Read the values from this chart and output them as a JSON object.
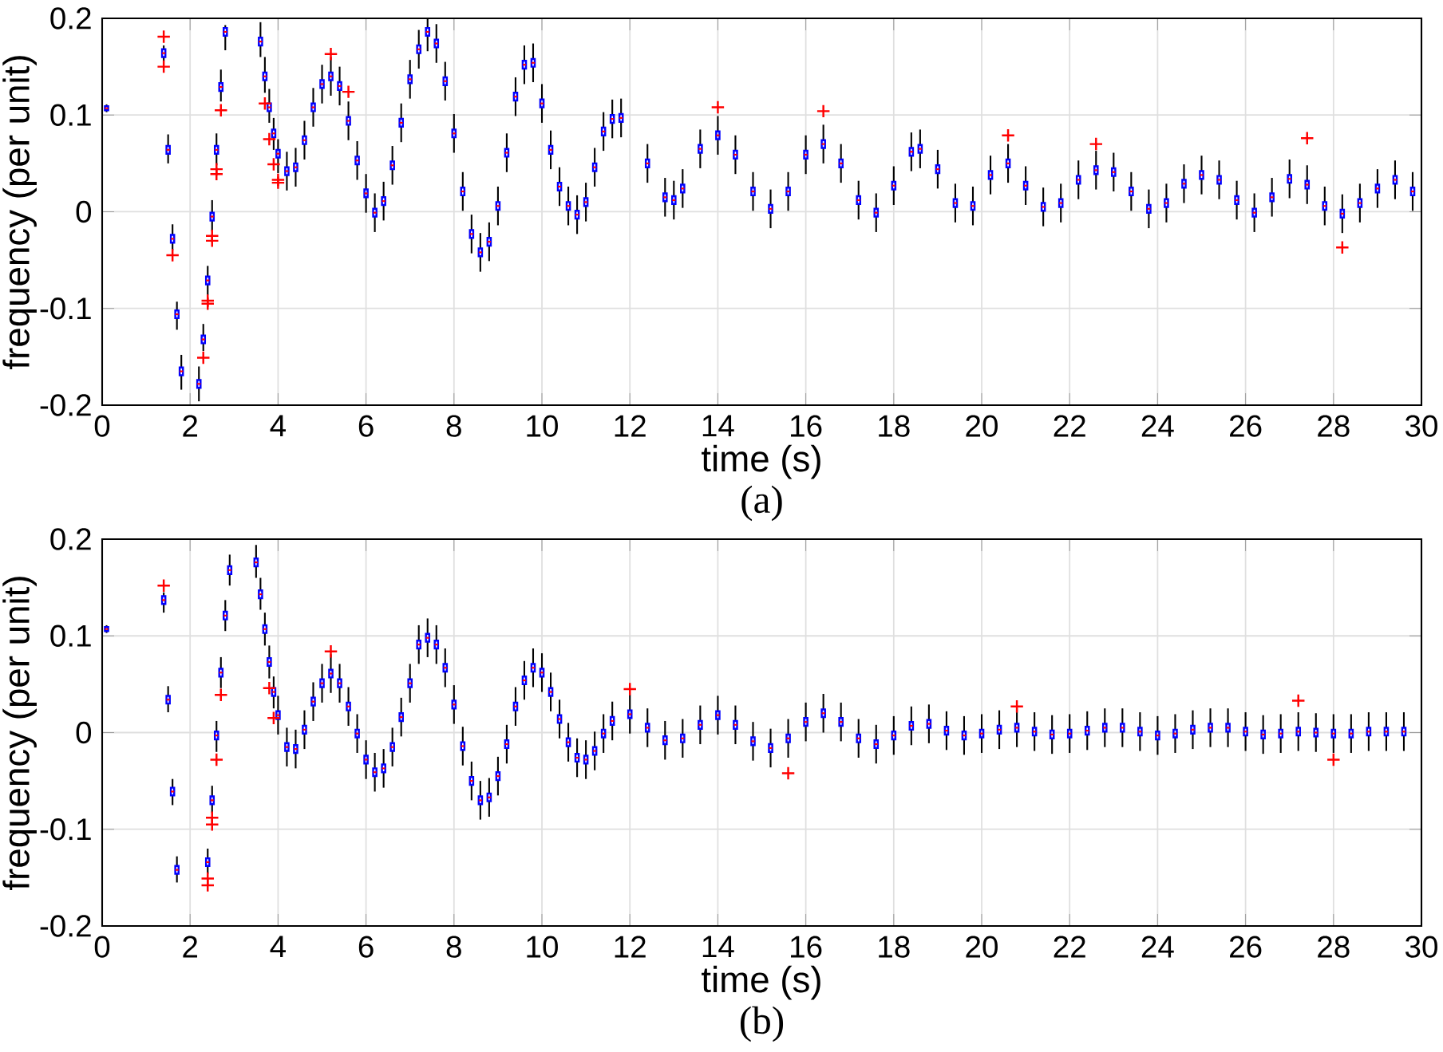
{
  "chart_data": [
    {
      "type": "box",
      "color": "#0000ff",
      "xlabel": "time (s)",
      "ylabel": "frequency (per unit)",
      "annotations": [
        "(a)"
      ],
      "grid": true,
      "xlim": [
        0,
        30
      ],
      "ylim": [
        -0.2,
        0.2
      ],
      "xticks": [
        0,
        2,
        4,
        6,
        8,
        10,
        12,
        14,
        16,
        18,
        20,
        22,
        24,
        26,
        28,
        30
      ],
      "yticks": [
        -0.2,
        -0.1,
        0,
        0.1,
        0.2
      ],
      "x": [
        0.1,
        1.4,
        1.5,
        1.6,
        1.7,
        1.8,
        2.2,
        2.3,
        2.4,
        2.5,
        2.6,
        2.7,
        2.8,
        3.6,
        3.7,
        3.8,
        3.9,
        4.0,
        4.2,
        4.4,
        4.6,
        4.8,
        5.0,
        5.2,
        5.4,
        5.6,
        5.8,
        6.0,
        6.2,
        6.4,
        6.6,
        6.8,
        7.0,
        7.2,
        7.4,
        7.6,
        7.8,
        8.0,
        8.2,
        8.4,
        8.6,
        8.8,
        9.0,
        9.2,
        9.4,
        9.6,
        9.8,
        10.0,
        10.2,
        10.4,
        10.6,
        10.8,
        11.0,
        11.2,
        11.4,
        11.6,
        11.8,
        12.4,
        12.8,
        13.0,
        13.2,
        13.6,
        14.0,
        14.4,
        14.8,
        15.2,
        15.6,
        16.0,
        16.4,
        16.8,
        17.2,
        17.6,
        18.0,
        18.4,
        18.6,
        19.0,
        19.4,
        19.8,
        20.2,
        20.6,
        21.0,
        21.4,
        21.8,
        22.2,
        22.6,
        23.0,
        23.4,
        23.8,
        24.2,
        24.6,
        25.0,
        25.4,
        25.8,
        26.2,
        26.6,
        27.0,
        27.4,
        27.8,
        28.2,
        28.6,
        29.0,
        29.4,
        29.8
      ],
      "boxes": [
        {
          "low": 0.103,
          "q1": 0.105,
          "median": 0.107,
          "q3": 0.109,
          "high": 0.111
        },
        {
          "low": 0.156,
          "q1": 0.16,
          "median": 0.164,
          "q3": 0.168,
          "high": 0.172,
          "outliers": [
            0.181,
            0.15
          ]
        },
        {
          "low": 0.05,
          "q1": 0.06,
          "median": 0.064,
          "q3": 0.068,
          "high": 0.08
        },
        {
          "low": -0.04,
          "q1": -0.032,
          "median": -0.028,
          "q3": -0.024,
          "high": -0.013,
          "outliers": [
            -0.045
          ]
        },
        {
          "low": -0.122,
          "q1": -0.11,
          "median": -0.106,
          "q3": -0.102,
          "high": -0.093
        },
        {
          "low": -0.184,
          "q1": -0.169,
          "median": -0.165,
          "q3": -0.161,
          "high": -0.148
        },
        {
          "low": -0.196,
          "q1": -0.182,
          "median": -0.178,
          "q3": -0.174,
          "high": -0.16
        },
        {
          "low": -0.144,
          "q1": -0.136,
          "median": -0.132,
          "q3": -0.128,
          "high": -0.116,
          "outliers": [
            -0.151
          ]
        },
        {
          "low": -0.086,
          "q1": -0.075,
          "median": -0.071,
          "q3": -0.067,
          "high": -0.056,
          "outliers": [
            -0.092,
            -0.095
          ]
        },
        {
          "low": -0.02,
          "q1": -0.009,
          "median": -0.005,
          "q3": -0.001,
          "high": 0.012,
          "outliers": [
            -0.025,
            -0.03
          ]
        },
        {
          "low": 0.048,
          "q1": 0.06,
          "median": 0.064,
          "q3": 0.068,
          "high": 0.081,
          "outliers": [
            0.044,
            0.039
          ]
        },
        {
          "low": 0.114,
          "q1": 0.125,
          "median": 0.129,
          "q3": 0.133,
          "high": 0.147,
          "outliers": [
            0.105
          ]
        },
        {
          "low": 0.167,
          "q1": 0.182,
          "median": 0.186,
          "q3": 0.19,
          "high": 0.193
        },
        {
          "low": 0.16,
          "q1": 0.172,
          "median": 0.176,
          "q3": 0.18,
          "high": 0.196
        },
        {
          "low": 0.123,
          "q1": 0.136,
          "median": 0.14,
          "q3": 0.144,
          "high": 0.16,
          "outliers": [
            0.112
          ]
        },
        {
          "low": 0.092,
          "q1": 0.104,
          "median": 0.108,
          "q3": 0.112,
          "high": 0.127,
          "outliers": [
            0.075
          ]
        },
        {
          "low": 0.064,
          "q1": 0.077,
          "median": 0.081,
          "q3": 0.085,
          "high": 0.097,
          "outliers": [
            0.049
          ]
        },
        {
          "low": 0.04,
          "q1": 0.056,
          "median": 0.06,
          "q3": 0.064,
          "high": 0.075,
          "outliers": [
            0.033,
            0.03
          ]
        },
        {
          "low": 0.022,
          "q1": 0.038,
          "median": 0.042,
          "q3": 0.046,
          "high": 0.062
        },
        {
          "low": 0.026,
          "q1": 0.042,
          "median": 0.046,
          "q3": 0.05,
          "high": 0.066
        },
        {
          "low": 0.054,
          "q1": 0.07,
          "median": 0.074,
          "q3": 0.078,
          "high": 0.094
        },
        {
          "low": 0.088,
          "q1": 0.104,
          "median": 0.108,
          "q3": 0.112,
          "high": 0.128
        },
        {
          "low": 0.112,
          "q1": 0.128,
          "median": 0.132,
          "q3": 0.136,
          "high": 0.152
        },
        {
          "low": 0.12,
          "q1": 0.136,
          "median": 0.14,
          "q3": 0.144,
          "high": 0.16,
          "outliers": [
            0.163
          ]
        },
        {
          "low": 0.11,
          "q1": 0.126,
          "median": 0.13,
          "q3": 0.134,
          "high": 0.15
        },
        {
          "low": 0.074,
          "q1": 0.09,
          "median": 0.094,
          "q3": 0.098,
          "high": 0.114,
          "outliers": [
            0.124
          ]
        },
        {
          "low": 0.033,
          "q1": 0.049,
          "median": 0.053,
          "q3": 0.057,
          "high": 0.073
        },
        {
          "low": -0.001,
          "q1": 0.015,
          "median": 0.019,
          "q3": 0.023,
          "high": 0.039
        },
        {
          "low": -0.021,
          "q1": -0.005,
          "median": -0.001,
          "q3": 0.003,
          "high": 0.019
        },
        {
          "low": -0.009,
          "q1": 0.007,
          "median": 0.011,
          "q3": 0.015,
          "high": 0.031
        },
        {
          "low": 0.028,
          "q1": 0.044,
          "median": 0.048,
          "q3": 0.052,
          "high": 0.068
        },
        {
          "low": 0.072,
          "q1": 0.088,
          "median": 0.092,
          "q3": 0.096,
          "high": 0.112
        },
        {
          "low": 0.117,
          "q1": 0.133,
          "median": 0.137,
          "q3": 0.141,
          "high": 0.157
        },
        {
          "low": 0.148,
          "q1": 0.164,
          "median": 0.168,
          "q3": 0.172,
          "high": 0.188
        },
        {
          "low": 0.166,
          "q1": 0.182,
          "median": 0.186,
          "q3": 0.19,
          "high": 0.2
        },
        {
          "low": 0.154,
          "q1": 0.17,
          "median": 0.174,
          "q3": 0.178,
          "high": 0.194
        },
        {
          "low": 0.115,
          "q1": 0.131,
          "median": 0.135,
          "q3": 0.139,
          "high": 0.155
        },
        {
          "low": 0.061,
          "q1": 0.077,
          "median": 0.081,
          "q3": 0.085,
          "high": 0.101
        },
        {
          "low": 0.001,
          "q1": 0.017,
          "median": 0.021,
          "q3": 0.025,
          "high": 0.041
        },
        {
          "low": -0.043,
          "q1": -0.027,
          "median": -0.023,
          "q3": -0.019,
          "high": -0.003
        },
        {
          "low": -0.062,
          "q1": -0.046,
          "median": -0.042,
          "q3": -0.038,
          "high": -0.022
        },
        {
          "low": -0.051,
          "q1": -0.035,
          "median": -0.031,
          "q3": -0.027,
          "high": -0.011
        },
        {
          "low": -0.014,
          "q1": 0.002,
          "median": 0.006,
          "q3": 0.01,
          "high": 0.026
        },
        {
          "low": 0.041,
          "q1": 0.057,
          "median": 0.061,
          "q3": 0.065,
          "high": 0.081
        },
        {
          "low": 0.099,
          "q1": 0.115,
          "median": 0.119,
          "q3": 0.123,
          "high": 0.139
        },
        {
          "low": 0.132,
          "q1": 0.148,
          "median": 0.152,
          "q3": 0.156,
          "high": 0.172
        },
        {
          "low": 0.134,
          "q1": 0.15,
          "median": 0.154,
          "q3": 0.158,
          "high": 0.174
        },
        {
          "low": 0.092,
          "q1": 0.108,
          "median": 0.112,
          "q3": 0.116,
          "high": 0.132
        },
        {
          "low": 0.044,
          "q1": 0.06,
          "median": 0.064,
          "q3": 0.068,
          "high": 0.084
        },
        {
          "low": 0.006,
          "q1": 0.022,
          "median": 0.026,
          "q3": 0.03,
          "high": 0.046
        },
        {
          "low": -0.014,
          "q1": 0.002,
          "median": 0.006,
          "q3": 0.01,
          "high": 0.026
        },
        {
          "low": -0.023,
          "q1": -0.007,
          "median": -0.003,
          "q3": 0.001,
          "high": 0.017
        },
        {
          "low": -0.01,
          "q1": 0.006,
          "median": 0.01,
          "q3": 0.014,
          "high": 0.03
        },
        {
          "low": 0.026,
          "q1": 0.042,
          "median": 0.046,
          "q3": 0.05,
          "high": 0.066
        },
        {
          "low": 0.063,
          "q1": 0.079,
          "median": 0.083,
          "q3": 0.087,
          "high": 0.103
        },
        {
          "low": 0.076,
          "q1": 0.092,
          "median": 0.096,
          "q3": 0.1,
          "high": 0.116
        },
        {
          "low": 0.077,
          "q1": 0.093,
          "median": 0.097,
          "q3": 0.101,
          "high": 0.117
        },
        {
          "low": 0.03,
          "q1": 0.046,
          "median": 0.05,
          "q3": 0.054,
          "high": 0.07
        },
        {
          "low": -0.005,
          "q1": 0.011,
          "median": 0.015,
          "q3": 0.019,
          "high": 0.035
        },
        {
          "low": -0.008,
          "q1": 0.008,
          "median": 0.012,
          "q3": 0.016,
          "high": 0.032
        },
        {
          "low": 0.004,
          "q1": 0.02,
          "median": 0.024,
          "q3": 0.028,
          "high": 0.044
        },
        {
          "low": 0.045,
          "q1": 0.061,
          "median": 0.065,
          "q3": 0.069,
          "high": 0.085
        },
        {
          "low": 0.059,
          "q1": 0.075,
          "median": 0.079,
          "q3": 0.083,
          "high": 0.099,
          "outliers": [
            0.108
          ]
        },
        {
          "low": 0.039,
          "q1": 0.055,
          "median": 0.059,
          "q3": 0.063,
          "high": 0.079
        },
        {
          "low": 0.001,
          "q1": 0.017,
          "median": 0.021,
          "q3": 0.025,
          "high": 0.041
        },
        {
          "low": -0.017,
          "q1": -0.001,
          "median": 0.003,
          "q3": 0.007,
          "high": 0.023
        },
        {
          "low": 0.001,
          "q1": 0.017,
          "median": 0.021,
          "q3": 0.025,
          "high": 0.041
        },
        {
          "low": 0.039,
          "q1": 0.055,
          "median": 0.059,
          "q3": 0.063,
          "high": 0.079
        },
        {
          "low": 0.05,
          "q1": 0.066,
          "median": 0.07,
          "q3": 0.074,
          "high": 0.09,
          "outliers": [
            0.104
          ]
        },
        {
          "low": 0.03,
          "q1": 0.046,
          "median": 0.05,
          "q3": 0.054,
          "high": 0.07
        },
        {
          "low": -0.008,
          "q1": 0.008,
          "median": 0.012,
          "q3": 0.016,
          "high": 0.032
        },
        {
          "low": -0.021,
          "q1": -0.005,
          "median": -0.001,
          "q3": 0.003,
          "high": 0.019
        },
        {
          "low": 0.007,
          "q1": 0.023,
          "median": 0.027,
          "q3": 0.031,
          "high": 0.047
        },
        {
          "low": 0.042,
          "q1": 0.058,
          "median": 0.062,
          "q3": 0.066,
          "high": 0.082
        },
        {
          "low": 0.045,
          "q1": 0.061,
          "median": 0.065,
          "q3": 0.069,
          "high": 0.085
        },
        {
          "low": 0.024,
          "q1": 0.04,
          "median": 0.044,
          "q3": 0.048,
          "high": 0.064
        },
        {
          "low": -0.011,
          "q1": 0.005,
          "median": 0.009,
          "q3": 0.013,
          "high": 0.029
        },
        {
          "low": -0.014,
          "q1": 0.002,
          "median": 0.006,
          "q3": 0.01,
          "high": 0.026
        },
        {
          "low": 0.018,
          "q1": 0.034,
          "median": 0.038,
          "q3": 0.042,
          "high": 0.058
        },
        {
          "low": 0.03,
          "q1": 0.046,
          "median": 0.05,
          "q3": 0.054,
          "high": 0.07,
          "outliers": [
            0.079
          ]
        },
        {
          "low": 0.007,
          "q1": 0.023,
          "median": 0.027,
          "q3": 0.031,
          "high": 0.047
        },
        {
          "low": -0.015,
          "q1": 0.001,
          "median": 0.005,
          "q3": 0.009,
          "high": 0.025
        },
        {
          "low": -0.011,
          "q1": 0.005,
          "median": 0.009,
          "q3": 0.013,
          "high": 0.029
        },
        {
          "low": 0.013,
          "q1": 0.029,
          "median": 0.033,
          "q3": 0.037,
          "high": 0.053
        },
        {
          "low": 0.023,
          "q1": 0.039,
          "median": 0.043,
          "q3": 0.047,
          "high": 0.063,
          "outliers": [
            0.07
          ]
        },
        {
          "low": 0.021,
          "q1": 0.037,
          "median": 0.041,
          "q3": 0.045,
          "high": 0.061
        },
        {
          "low": 0.001,
          "q1": 0.017,
          "median": 0.021,
          "q3": 0.025,
          "high": 0.041
        },
        {
          "low": -0.017,
          "q1": -0.001,
          "median": 0.003,
          "q3": 0.007,
          "high": 0.023
        },
        {
          "low": -0.011,
          "q1": 0.005,
          "median": 0.009,
          "q3": 0.013,
          "high": 0.029
        },
        {
          "low": 0.009,
          "q1": 0.025,
          "median": 0.029,
          "q3": 0.033,
          "high": 0.049
        },
        {
          "low": 0.018,
          "q1": 0.034,
          "median": 0.038,
          "q3": 0.042,
          "high": 0.058
        },
        {
          "low": 0.013,
          "q1": 0.029,
          "median": 0.033,
          "q3": 0.037,
          "high": 0.053
        },
        {
          "low": -0.008,
          "q1": 0.008,
          "median": 0.012,
          "q3": 0.016,
          "high": 0.032
        },
        {
          "low": -0.021,
          "q1": -0.005,
          "median": -0.001,
          "q3": 0.003,
          "high": 0.019
        },
        {
          "low": -0.005,
          "q1": 0.011,
          "median": 0.015,
          "q3": 0.019,
          "high": 0.035
        },
        {
          "low": 0.014,
          "q1": 0.03,
          "median": 0.034,
          "q3": 0.038,
          "high": 0.054
        },
        {
          "low": 0.008,
          "q1": 0.024,
          "median": 0.028,
          "q3": 0.032,
          "high": 0.048,
          "outliers": [
            0.076
          ]
        },
        {
          "low": -0.014,
          "q1": 0.002,
          "median": 0.006,
          "q3": 0.01,
          "high": 0.026
        },
        {
          "low": -0.022,
          "q1": -0.006,
          "median": -0.002,
          "q3": 0.002,
          "high": 0.018,
          "outliers": [
            -0.037
          ]
        },
        {
          "low": -0.011,
          "q1": 0.005,
          "median": 0.009,
          "q3": 0.013,
          "high": 0.029
        },
        {
          "low": 0.004,
          "q1": 0.02,
          "median": 0.024,
          "q3": 0.028,
          "high": 0.044
        },
        {
          "low": 0.013,
          "q1": 0.029,
          "median": 0.033,
          "q3": 0.037,
          "high": 0.053
        },
        {
          "low": 0.001,
          "q1": 0.017,
          "median": 0.021,
          "q3": 0.025,
          "high": 0.041
        }
      ]
    },
    {
      "type": "box",
      "color": "#0000ff",
      "xlabel": "time (s)",
      "ylabel": "frequency (per unit)",
      "annotations": [
        "(b)"
      ],
      "grid": true,
      "xlim": [
        0,
        30
      ],
      "ylim": [
        -0.2,
        0.2
      ],
      "xticks": [
        0,
        2,
        4,
        6,
        8,
        10,
        12,
        14,
        16,
        18,
        20,
        22,
        24,
        26,
        28,
        30
      ],
      "yticks": [
        -0.2,
        -0.1,
        0,
        0.1,
        0.2
      ],
      "x": [
        0.1,
        1.4,
        1.5,
        1.6,
        1.7,
        2.4,
        2.5,
        2.6,
        2.7,
        2.8,
        2.9,
        3.5,
        3.6,
        3.7,
        3.8,
        3.9,
        4.0,
        4.2,
        4.4,
        4.6,
        4.8,
        5.0,
        5.2,
        5.4,
        5.6,
        5.8,
        6.0,
        6.2,
        6.4,
        6.6,
        6.8,
        7.0,
        7.2,
        7.4,
        7.6,
        7.8,
        8.0,
        8.2,
        8.4,
        8.6,
        8.8,
        9.0,
        9.2,
        9.4,
        9.6,
        9.8,
        10.0,
        10.2,
        10.4,
        10.6,
        10.8,
        11.0,
        11.2,
        11.4,
        11.6,
        12.0,
        12.4,
        12.8,
        13.2,
        13.6,
        14.0,
        14.4,
        14.8,
        15.2,
        15.6,
        16.0,
        16.4,
        16.8,
        17.2,
        17.6,
        18.0,
        18.4,
        18.8,
        19.2,
        19.6,
        20.0,
        20.4,
        20.8,
        21.2,
        21.6,
        22.0,
        22.4,
        22.8,
        23.2,
        23.6,
        24.0,
        24.4,
        24.8,
        25.2,
        25.6,
        26.0,
        26.4,
        26.8,
        27.2,
        27.6,
        28.0,
        28.4,
        28.8,
        29.2,
        29.6
      ],
      "boxes": [
        {
          "low": 0.103,
          "q1": 0.105,
          "median": 0.107,
          "q3": 0.109,
          "high": 0.111
        },
        {
          "low": 0.124,
          "q1": 0.133,
          "median": 0.137,
          "q3": 0.141,
          "high": 0.145,
          "outliers": [
            0.152
          ]
        },
        {
          "low": 0.021,
          "q1": 0.03,
          "median": 0.034,
          "q3": 0.038,
          "high": 0.048
        },
        {
          "low": -0.075,
          "q1": -0.065,
          "median": -0.061,
          "q3": -0.057,
          "high": -0.048
        },
        {
          "low": -0.155,
          "q1": -0.146,
          "median": -0.142,
          "q3": -0.138,
          "high": -0.128
        },
        {
          "low": -0.146,
          "q1": -0.138,
          "median": -0.134,
          "q3": -0.13,
          "high": -0.12,
          "outliers": [
            -0.151,
            -0.158
          ]
        },
        {
          "low": -0.083,
          "q1": -0.074,
          "median": -0.07,
          "q3": -0.066,
          "high": -0.055,
          "outliers": [
            -0.088,
            -0.095
          ]
        },
        {
          "low": -0.02,
          "q1": -0.007,
          "median": -0.003,
          "q3": 0.001,
          "high": 0.012,
          "outliers": [
            -0.028
          ]
        },
        {
          "low": 0.046,
          "q1": 0.058,
          "median": 0.062,
          "q3": 0.066,
          "high": 0.078,
          "outliers": [
            0.039
          ]
        },
        {
          "low": 0.105,
          "q1": 0.117,
          "median": 0.121,
          "q3": 0.125,
          "high": 0.137
        },
        {
          "low": 0.152,
          "q1": 0.164,
          "median": 0.168,
          "q3": 0.172,
          "high": 0.184
        },
        {
          "low": 0.16,
          "q1": 0.172,
          "median": 0.176,
          "q3": 0.18,
          "high": 0.194
        },
        {
          "low": 0.127,
          "q1": 0.139,
          "median": 0.143,
          "q3": 0.147,
          "high": 0.16
        },
        {
          "low": 0.09,
          "q1": 0.103,
          "median": 0.107,
          "q3": 0.111,
          "high": 0.124
        },
        {
          "low": 0.056,
          "q1": 0.069,
          "median": 0.073,
          "q3": 0.077,
          "high": 0.09,
          "outliers": [
            0.046
          ]
        },
        {
          "low": 0.025,
          "q1": 0.038,
          "median": 0.042,
          "q3": 0.046,
          "high": 0.058,
          "outliers": [
            0.015
          ]
        },
        {
          "low": -0.002,
          "q1": 0.014,
          "median": 0.018,
          "q3": 0.022,
          "high": 0.038
        },
        {
          "low": -0.035,
          "q1": -0.019,
          "median": -0.015,
          "q3": -0.011,
          "high": 0.005
        },
        {
          "low": -0.037,
          "q1": -0.021,
          "median": -0.017,
          "q3": -0.013,
          "high": 0.003
        },
        {
          "low": -0.017,
          "q1": -0.001,
          "median": 0.003,
          "q3": 0.007,
          "high": 0.023
        },
        {
          "low": 0.012,
          "q1": 0.028,
          "median": 0.032,
          "q3": 0.036,
          "high": 0.052
        },
        {
          "low": 0.031,
          "q1": 0.047,
          "median": 0.051,
          "q3": 0.055,
          "high": 0.071
        },
        {
          "low": 0.041,
          "q1": 0.057,
          "median": 0.061,
          "q3": 0.065,
          "high": 0.081,
          "outliers": [
            0.084
          ]
        },
        {
          "low": 0.031,
          "q1": 0.047,
          "median": 0.051,
          "q3": 0.055,
          "high": 0.071
        },
        {
          "low": 0.007,
          "q1": 0.023,
          "median": 0.027,
          "q3": 0.031,
          "high": 0.047
        },
        {
          "low": -0.021,
          "q1": -0.005,
          "median": -0.001,
          "q3": 0.003,
          "high": 0.019
        },
        {
          "low": -0.048,
          "q1": -0.032,
          "median": -0.028,
          "q3": -0.024,
          "high": -0.008
        },
        {
          "low": -0.061,
          "q1": -0.045,
          "median": -0.041,
          "q3": -0.037,
          "high": -0.021
        },
        {
          "low": -0.057,
          "q1": -0.041,
          "median": -0.037,
          "q3": -0.033,
          "high": -0.017
        },
        {
          "low": -0.035,
          "q1": -0.019,
          "median": -0.015,
          "q3": -0.011,
          "high": 0.005
        },
        {
          "low": -0.004,
          "q1": 0.012,
          "median": 0.016,
          "q3": 0.02,
          "high": 0.036
        },
        {
          "low": 0.031,
          "q1": 0.047,
          "median": 0.051,
          "q3": 0.055,
          "high": 0.071
        },
        {
          "low": 0.071,
          "q1": 0.087,
          "median": 0.091,
          "q3": 0.095,
          "high": 0.111
        },
        {
          "low": 0.078,
          "q1": 0.094,
          "median": 0.098,
          "q3": 0.102,
          "high": 0.118
        },
        {
          "low": 0.071,
          "q1": 0.087,
          "median": 0.091,
          "q3": 0.095,
          "high": 0.111
        },
        {
          "low": 0.047,
          "q1": 0.063,
          "median": 0.067,
          "q3": 0.071,
          "high": 0.087
        },
        {
          "low": 0.009,
          "q1": 0.025,
          "median": 0.029,
          "q3": 0.033,
          "high": 0.049
        },
        {
          "low": -0.034,
          "q1": -0.018,
          "median": -0.014,
          "q3": -0.01,
          "high": 0.006
        },
        {
          "low": -0.07,
          "q1": -0.054,
          "median": -0.05,
          "q3": -0.046,
          "high": -0.03
        },
        {
          "low": -0.09,
          "q1": -0.074,
          "median": -0.07,
          "q3": -0.066,
          "high": -0.05
        },
        {
          "low": -0.087,
          "q1": -0.071,
          "median": -0.067,
          "q3": -0.063,
          "high": -0.047
        },
        {
          "low": -0.065,
          "q1": -0.049,
          "median": -0.045,
          "q3": -0.041,
          "high": -0.025
        },
        {
          "low": -0.032,
          "q1": -0.016,
          "median": -0.012,
          "q3": -0.008,
          "high": 0.008
        },
        {
          "low": 0.007,
          "q1": 0.023,
          "median": 0.027,
          "q3": 0.031,
          "high": 0.047
        },
        {
          "low": 0.034,
          "q1": 0.05,
          "median": 0.054,
          "q3": 0.058,
          "high": 0.074
        },
        {
          "low": 0.047,
          "q1": 0.063,
          "median": 0.067,
          "q3": 0.071,
          "high": 0.087
        },
        {
          "low": 0.042,
          "q1": 0.058,
          "median": 0.062,
          "q3": 0.066,
          "high": 0.082
        },
        {
          "low": 0.022,
          "q1": 0.038,
          "median": 0.042,
          "q3": 0.046,
          "high": 0.062
        },
        {
          "low": -0.006,
          "q1": 0.01,
          "median": 0.014,
          "q3": 0.018,
          "high": 0.034
        },
        {
          "low": -0.03,
          "q1": -0.014,
          "median": -0.01,
          "q3": -0.006,
          "high": 0.01
        },
        {
          "low": -0.046,
          "q1": -0.03,
          "median": -0.026,
          "q3": -0.022,
          "high": -0.006
        },
        {
          "low": -0.048,
          "q1": -0.032,
          "median": -0.028,
          "q3": -0.024,
          "high": -0.008
        },
        {
          "low": -0.039,
          "q1": -0.023,
          "median": -0.019,
          "q3": -0.015,
          "high": 0.001
        },
        {
          "low": -0.021,
          "q1": -0.005,
          "median": -0.001,
          "q3": 0.003,
          "high": 0.019
        },
        {
          "low": -0.008,
          "q1": 0.008,
          "median": 0.012,
          "q3": 0.016,
          "high": 0.032
        },
        {
          "low": -0.001,
          "q1": 0.015,
          "median": 0.019,
          "q3": 0.023,
          "high": 0.039,
          "outliers": [
            0.045
          ]
        },
        {
          "low": -0.015,
          "q1": 0.001,
          "median": 0.005,
          "q3": 0.009,
          "high": 0.025
        },
        {
          "low": -0.028,
          "q1": -0.012,
          "median": -0.008,
          "q3": -0.004,
          "high": 0.012
        },
        {
          "low": -0.026,
          "q1": -0.01,
          "median": -0.006,
          "q3": -0.002,
          "high": 0.014
        },
        {
          "low": -0.012,
          "q1": 0.004,
          "median": 0.008,
          "q3": 0.012,
          "high": 0.028
        },
        {
          "low": -0.002,
          "q1": 0.014,
          "median": 0.018,
          "q3": 0.022,
          "high": 0.038
        },
        {
          "low": -0.012,
          "q1": 0.004,
          "median": 0.008,
          "q3": 0.012,
          "high": 0.028
        },
        {
          "low": -0.029,
          "q1": -0.013,
          "median": -0.009,
          "q3": -0.005,
          "high": 0.011
        },
        {
          "low": -0.036,
          "q1": -0.02,
          "median": -0.016,
          "q3": -0.012,
          "high": 0.004
        },
        {
          "low": -0.026,
          "q1": -0.01,
          "median": -0.006,
          "q3": -0.002,
          "high": 0.014,
          "outliers": [
            -0.042
          ]
        },
        {
          "low": -0.009,
          "q1": 0.007,
          "median": 0.011,
          "q3": 0.015,
          "high": 0.031
        },
        {
          "low": 0.0,
          "q1": 0.016,
          "median": 0.02,
          "q3": 0.024,
          "high": 0.04
        },
        {
          "low": -0.009,
          "q1": 0.007,
          "median": 0.011,
          "q3": 0.015,
          "high": 0.031
        },
        {
          "low": -0.026,
          "q1": -0.01,
          "median": -0.006,
          "q3": -0.002,
          "high": 0.014
        },
        {
          "low": -0.032,
          "q1": -0.016,
          "median": -0.012,
          "q3": -0.008,
          "high": 0.008
        },
        {
          "low": -0.023,
          "q1": -0.007,
          "median": -0.003,
          "q3": 0.001,
          "high": 0.017
        },
        {
          "low": -0.013,
          "q1": 0.003,
          "median": 0.007,
          "q3": 0.011,
          "high": 0.027
        },
        {
          "low": -0.011,
          "q1": 0.005,
          "median": 0.009,
          "q3": 0.013,
          "high": 0.029
        },
        {
          "low": -0.018,
          "q1": -0.002,
          "median": 0.002,
          "q3": 0.006,
          "high": 0.022
        },
        {
          "low": -0.023,
          "q1": -0.007,
          "median": -0.003,
          "q3": 0.001,
          "high": 0.017
        },
        {
          "low": -0.021,
          "q1": -0.005,
          "median": -0.001,
          "q3": 0.003,
          "high": 0.019
        },
        {
          "low": -0.017,
          "q1": -0.001,
          "median": 0.003,
          "q3": 0.007,
          "high": 0.023
        },
        {
          "low": -0.015,
          "q1": 0.001,
          "median": 0.005,
          "q3": 0.009,
          "high": 0.025,
          "outliers": [
            0.027
          ]
        },
        {
          "low": -0.019,
          "q1": -0.003,
          "median": 0.001,
          "q3": 0.005,
          "high": 0.021
        },
        {
          "low": -0.022,
          "q1": -0.006,
          "median": -0.002,
          "q3": 0.002,
          "high": 0.018
        },
        {
          "low": -0.021,
          "q1": -0.005,
          "median": -0.001,
          "q3": 0.003,
          "high": 0.019
        },
        {
          "low": -0.018,
          "q1": -0.002,
          "median": 0.002,
          "q3": 0.006,
          "high": 0.022
        },
        {
          "low": -0.015,
          "q1": 0.001,
          "median": 0.005,
          "q3": 0.009,
          "high": 0.025
        },
        {
          "low": -0.015,
          "q1": 0.001,
          "median": 0.005,
          "q3": 0.009,
          "high": 0.025
        },
        {
          "low": -0.019,
          "q1": -0.003,
          "median": 0.001,
          "q3": 0.005,
          "high": 0.021
        },
        {
          "low": -0.023,
          "q1": -0.007,
          "median": -0.003,
          "q3": 0.001,
          "high": 0.017
        },
        {
          "low": -0.021,
          "q1": -0.005,
          "median": -0.001,
          "q3": 0.003,
          "high": 0.019
        },
        {
          "low": -0.017,
          "q1": -0.001,
          "median": 0.003,
          "q3": 0.007,
          "high": 0.023
        },
        {
          "low": -0.015,
          "q1": 0.001,
          "median": 0.005,
          "q3": 0.009,
          "high": 0.025
        },
        {
          "low": -0.015,
          "q1": 0.001,
          "median": 0.005,
          "q3": 0.009,
          "high": 0.025
        },
        {
          "low": -0.019,
          "q1": -0.003,
          "median": 0.001,
          "q3": 0.005,
          "high": 0.021
        },
        {
          "low": -0.022,
          "q1": -0.006,
          "median": -0.002,
          "q3": 0.002,
          "high": 0.018
        },
        {
          "low": -0.021,
          "q1": -0.005,
          "median": -0.001,
          "q3": 0.003,
          "high": 0.019
        },
        {
          "low": -0.019,
          "q1": -0.003,
          "median": 0.001,
          "q3": 0.005,
          "high": 0.021,
          "outliers": [
            0.033
          ]
        },
        {
          "low": -0.02,
          "q1": -0.004,
          "median": 0.0,
          "q3": 0.004,
          "high": 0.02
        },
        {
          "low": -0.021,
          "q1": -0.005,
          "median": -0.001,
          "q3": 0.003,
          "high": 0.019,
          "outliers": [
            -0.028
          ]
        },
        {
          "low": -0.021,
          "q1": -0.005,
          "median": -0.001,
          "q3": 0.003,
          "high": 0.019
        },
        {
          "low": -0.019,
          "q1": -0.003,
          "median": 0.001,
          "q3": 0.005,
          "high": 0.021
        },
        {
          "low": -0.019,
          "q1": -0.003,
          "median": 0.001,
          "q3": 0.005,
          "high": 0.021
        },
        {
          "low": -0.019,
          "q1": -0.003,
          "median": 0.001,
          "q3": 0.005,
          "high": 0.021
        }
      ]
    }
  ]
}
